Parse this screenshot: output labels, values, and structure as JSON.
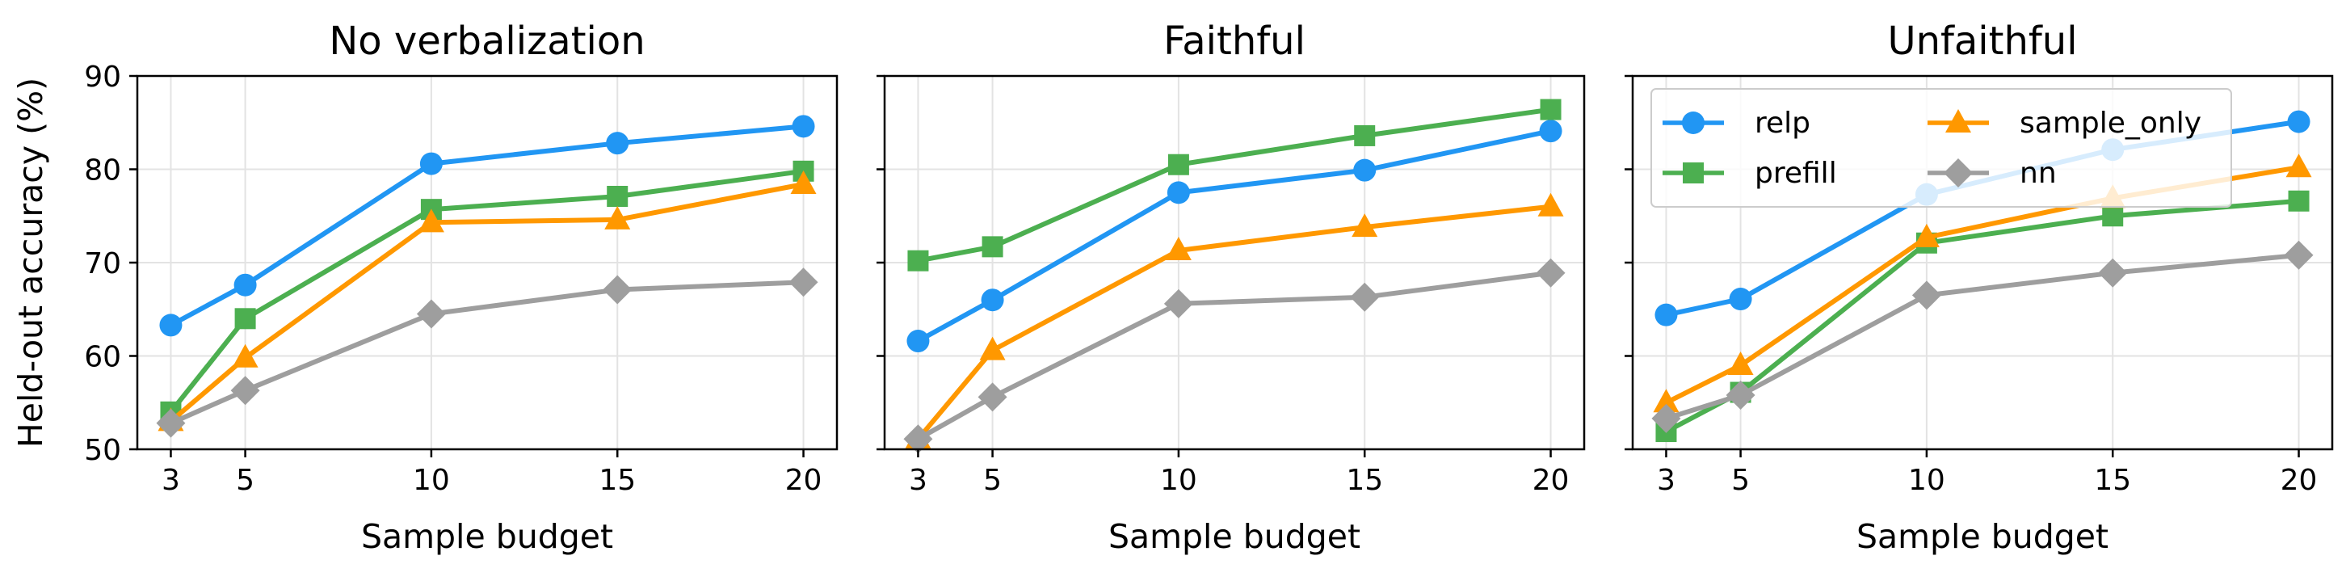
{
  "chart_data": [
    {
      "type": "line",
      "title": "No verbalization",
      "xlabel": "Sample budget",
      "ylabel": "Held-out accuracy (%)",
      "x": [
        3,
        5,
        10,
        15,
        20
      ],
      "xticks": [
        "3",
        "5",
        "10",
        "15",
        "20"
      ],
      "yticks": [
        "50",
        "60",
        "70",
        "80",
        "90"
      ],
      "ylim": [
        50,
        90
      ],
      "grid": true,
      "series": [
        {
          "name": "relp",
          "color": "#2196F3",
          "marker": "circle",
          "values": [
            63.3,
            67.6,
            80.6,
            82.8,
            84.6
          ]
        },
        {
          "name": "prefill",
          "color": "#4CAF50",
          "marker": "square",
          "values": [
            54.0,
            64.0,
            75.7,
            77.1,
            79.8
          ]
        },
        {
          "name": "sample_only",
          "color": "#FF9800",
          "marker": "triangle",
          "values": [
            53.0,
            59.8,
            74.3,
            74.6,
            78.4
          ]
        },
        {
          "name": "nn",
          "color": "#9E9E9E",
          "marker": "diamond",
          "values": [
            52.8,
            56.3,
            64.5,
            67.1,
            67.9
          ]
        }
      ]
    },
    {
      "type": "line",
      "title": "Faithful",
      "xlabel": "Sample budget",
      "ylabel": "",
      "x": [
        3,
        5,
        10,
        15,
        20
      ],
      "xticks": [
        "3",
        "5",
        "10",
        "15",
        "20"
      ],
      "yticks": [],
      "ylim": [
        50,
        90
      ],
      "grid": true,
      "series": [
        {
          "name": "relp",
          "color": "#2196F3",
          "marker": "circle",
          "values": [
            61.6,
            66.0,
            77.5,
            79.9,
            84.1
          ]
        },
        {
          "name": "prefill",
          "color": "#4CAF50",
          "marker": "square",
          "values": [
            70.2,
            71.7,
            80.5,
            83.6,
            86.4
          ]
        },
        {
          "name": "sample_only",
          "color": "#FF9800",
          "marker": "triangle",
          "values": [
            51.1,
            60.6,
            71.3,
            73.8,
            76.0
          ]
        },
        {
          "name": "nn",
          "color": "#9E9E9E",
          "marker": "diamond",
          "values": [
            51.1,
            55.6,
            65.6,
            66.3,
            68.9
          ]
        }
      ]
    },
    {
      "type": "line",
      "title": "Unfaithful",
      "xlabel": "Sample budget",
      "ylabel": "",
      "x": [
        3,
        5,
        10,
        15,
        20
      ],
      "xticks": [
        "3",
        "5",
        "10",
        "15",
        "20"
      ],
      "yticks": [],
      "ylim": [
        50,
        90
      ],
      "grid": true,
      "legend": "top-left",
      "series": [
        {
          "name": "relp",
          "color": "#2196F3",
          "marker": "circle",
          "values": [
            64.4,
            66.1,
            77.3,
            82.1,
            85.1
          ]
        },
        {
          "name": "prefill",
          "color": "#4CAF50",
          "marker": "square",
          "values": [
            51.9,
            56.1,
            72.1,
            75.0,
            76.6
          ]
        },
        {
          "name": "sample_only",
          "color": "#FF9800",
          "marker": "triangle",
          "values": [
            55.0,
            59.0,
            72.7,
            76.9,
            80.2
          ]
        },
        {
          "name": "nn",
          "color": "#9E9E9E",
          "marker": "diamond",
          "values": [
            53.3,
            55.8,
            66.5,
            68.9,
            70.8
          ]
        }
      ]
    }
  ]
}
